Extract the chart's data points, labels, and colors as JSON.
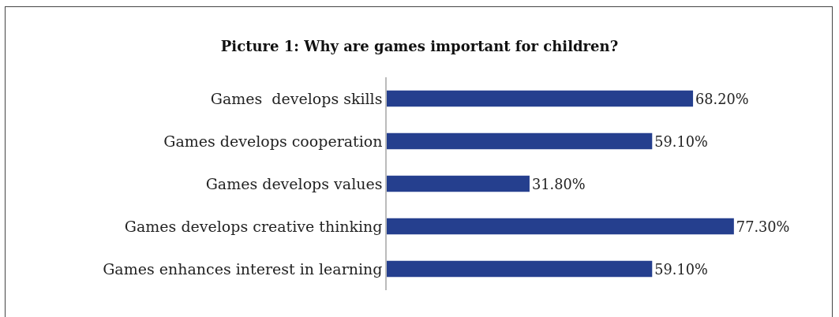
{
  "chart_data": {
    "type": "bar",
    "orientation": "horizontal",
    "title": "Picture 1: Why are games important for children?",
    "categories": [
      "Games  develops skills",
      "Games develops cooperation",
      "Games develops values",
      "Games develops creative thinking",
      "Games enhances interest in learning"
    ],
    "values": [
      68.2,
      59.1,
      31.8,
      77.3,
      59.1
    ],
    "value_labels": [
      "68.20%",
      "59.10%",
      "31.80%",
      "77.30%",
      "59.10%"
    ],
    "color": "#253f8e",
    "tick_labels": "y",
    "legend": false
  }
}
